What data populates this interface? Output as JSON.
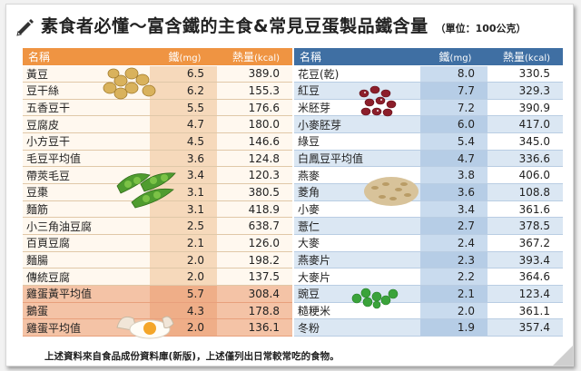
{
  "title": {
    "main": "素食者必懂～富含鐵的主食&常見豆蛋製品鐵含量",
    "unit": "（單位：100公克）"
  },
  "left_table": {
    "headers": {
      "name": "名稱",
      "iron": "鐵",
      "iron_unit": "(mg)",
      "kcal": "熱量",
      "kcal_unit": "(kcal)"
    },
    "rows": [
      {
        "name": "黃豆",
        "iron": "6.5",
        "kcal": "389.0"
      },
      {
        "name": "豆干絲",
        "iron": "6.2",
        "kcal": "155.3"
      },
      {
        "name": "五香豆干",
        "iron": "5.5",
        "kcal": "176.6"
      },
      {
        "name": "豆腐皮",
        "iron": "4.7",
        "kcal": "180.0"
      },
      {
        "name": "小方豆干",
        "iron": "4.5",
        "kcal": "146.6"
      },
      {
        "name": "毛豆平均值",
        "iron": "3.6",
        "kcal": "124.8"
      },
      {
        "name": "帶莢毛豆",
        "iron": "3.4",
        "kcal": "120.3"
      },
      {
        "name": "豆棗",
        "iron": "3.1",
        "kcal": "380.5"
      },
      {
        "name": "麵筋",
        "iron": "3.1",
        "kcal": "418.9"
      },
      {
        "name": "小三角油豆腐",
        "iron": "2.5",
        "kcal": "638.7"
      },
      {
        "name": "百頁豆腐",
        "iron": "2.1",
        "kcal": "126.0"
      },
      {
        "name": "麵腸",
        "iron": "2.0",
        "kcal": "198.2"
      },
      {
        "name": "傳統豆腐",
        "iron": "2.0",
        "kcal": "137.5"
      },
      {
        "name": "雞蛋黃平均值",
        "iron": "5.7",
        "kcal": "308.4"
      },
      {
        "name": "鵝蛋",
        "iron": "4.3",
        "kcal": "178.8"
      },
      {
        "name": "雞蛋平均值",
        "iron": "2.0",
        "kcal": "136.1"
      }
    ]
  },
  "right_table": {
    "headers": {
      "name": "名稱",
      "iron": "鐵",
      "iron_unit": "(mg)",
      "kcal": "熱量",
      "kcal_unit": "(kcal)"
    },
    "rows": [
      {
        "name": "花豆(乾)",
        "iron": "8.0",
        "kcal": "330.5"
      },
      {
        "name": "紅豆",
        "iron": "7.7",
        "kcal": "329.3"
      },
      {
        "name": "米胚芽",
        "iron": "7.2",
        "kcal": "390.9"
      },
      {
        "name": "小麥胚芽",
        "iron": "6.0",
        "kcal": "417.0"
      },
      {
        "name": "綠豆",
        "iron": "5.4",
        "kcal": "345.0"
      },
      {
        "name": "白鳳豆平均值",
        "iron": "4.7",
        "kcal": "336.6"
      },
      {
        "name": "燕麥",
        "iron": "3.8",
        "kcal": "406.0"
      },
      {
        "name": "菱角",
        "iron": "3.6",
        "kcal": "108.8"
      },
      {
        "name": "小麥",
        "iron": "3.4",
        "kcal": "361.6"
      },
      {
        "name": "薏仁",
        "iron": "2.7",
        "kcal": "378.5"
      },
      {
        "name": "大麥",
        "iron": "2.4",
        "kcal": "367.2"
      },
      {
        "name": "燕麥片",
        "iron": "2.3",
        "kcal": "393.4"
      },
      {
        "name": "大麥片",
        "iron": "2.2",
        "kcal": "364.6"
      },
      {
        "name": "豌豆",
        "iron": "2.1",
        "kcal": "123.4"
      },
      {
        "name": "糙粳米",
        "iron": "2.0",
        "kcal": "361.1"
      },
      {
        "name": "冬粉",
        "iron": "1.9",
        "kcal": "357.4"
      }
    ]
  },
  "footer": "上述資料來自食品成份資料庫(新版)，上述僅列出日常較常吃的食物。",
  "colors": {
    "left_header": "#ef9442",
    "right_header": "#3f6fa3",
    "egg_rows": "#f4c3a6"
  },
  "icons": [
    "pencil-icon",
    "soybeans-image",
    "edamame-image",
    "egg-image",
    "red-beans-image",
    "oats-image",
    "peas-image"
  ]
}
